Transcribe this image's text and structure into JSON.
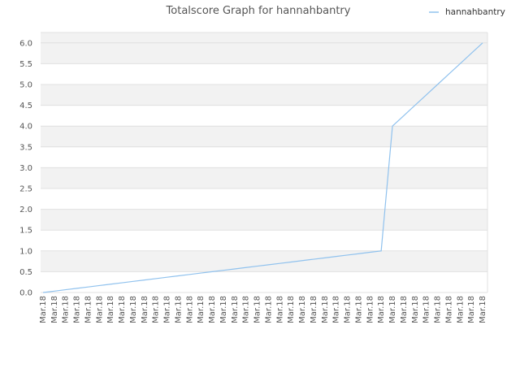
{
  "chart_data": {
    "type": "line",
    "title": "Totalscore Graph for hannahbantry",
    "xlabel": "",
    "ylabel": "",
    "ylim": [
      0,
      6.25
    ],
    "yticks": [
      0.0,
      0.5,
      1.0,
      1.5,
      2.0,
      2.5,
      3.0,
      3.5,
      4.0,
      4.5,
      5.0,
      5.5,
      6.0
    ],
    "ytick_labels": [
      "0.0",
      "0.5",
      "1.0",
      "1.5",
      "2.0",
      "2.5",
      "3.0",
      "3.5",
      "4.0",
      "4.5",
      "5.0",
      "5.5",
      "6.0"
    ],
    "x": [
      "Mar.18",
      "Mar.18",
      "Mar.18",
      "Mar.18",
      "Mar.18",
      "Mar.18",
      "Mar.18",
      "Mar.18",
      "Mar.18",
      "Mar.18",
      "Mar.18",
      "Mar.18",
      "Mar.18",
      "Mar.18",
      "Mar.18",
      "Mar.18",
      "Mar.18",
      "Mar.18",
      "Mar.18",
      "Mar.18",
      "Mar.18",
      "Mar.18",
      "Mar.18",
      "Mar.18",
      "Mar.18",
      "Mar.18",
      "Mar.18",
      "Mar.18",
      "Mar.18",
      "Mar.18",
      "Mar.18",
      "Mar.18",
      "Mar.18",
      "Mar.18",
      "Mar.18",
      "Mar.18",
      "Mar.18",
      "Mar.18",
      "Mar.18",
      "Mar.18"
    ],
    "series": [
      {
        "name": "hannahbantry",
        "color": "#90c2ee",
        "values": [
          0,
          0.033,
          0.067,
          0.1,
          0.133,
          0.167,
          0.2,
          0.233,
          0.267,
          0.3,
          0.333,
          0.367,
          0.4,
          0.433,
          0.467,
          0.5,
          0.533,
          0.567,
          0.6,
          0.633,
          0.667,
          0.7,
          0.733,
          0.767,
          0.8,
          0.833,
          0.867,
          0.9,
          0.933,
          0.967,
          1.0,
          4.0,
          4.25,
          4.5,
          4.75,
          5.0,
          5.25,
          5.5,
          5.75,
          6.0
        ]
      }
    ],
    "grid": true,
    "legend": "top-right"
  }
}
